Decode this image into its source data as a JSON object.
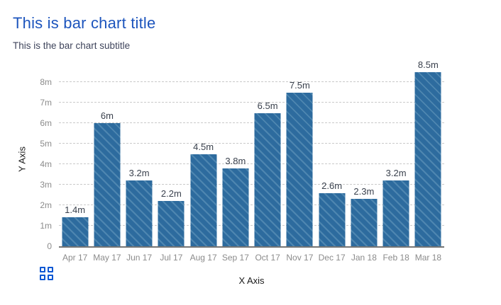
{
  "header": {
    "title": "This is bar chart title",
    "subtitle": "This is the bar chart subtitle"
  },
  "chart_data": {
    "type": "bar",
    "title": "This is bar chart title",
    "subtitle": "This is the bar chart subtitle",
    "xlabel": "X Axis",
    "ylabel": "Y Axis",
    "categories": [
      "Apr 17",
      "May 17",
      "Jun 17",
      "Jul 17",
      "Aug 17",
      "Sep 17",
      "Oct 17",
      "Nov 17",
      "Dec 17",
      "Jan 18",
      "Feb 18",
      "Mar 18"
    ],
    "values": [
      1.4,
      6,
      3.2,
      2.2,
      4.5,
      3.8,
      6.5,
      7.5,
      2.6,
      2.3,
      3.2,
      8.5
    ],
    "value_labels": [
      "1.4m",
      "6m",
      "3.2m",
      "2.2m",
      "4.5m",
      "3.8m",
      "6.5m",
      "7.5m",
      "2.6m",
      "2.3m",
      "3.2m",
      "8.5m"
    ],
    "y_ticks": [
      "0",
      "1m",
      "2m",
      "3m",
      "4m",
      "5m",
      "6m",
      "7m",
      "8m"
    ],
    "ylim": [
      0,
      8.8
    ],
    "grid": "horizontal-dashed",
    "legend_position": "none",
    "bar_pattern": "diagonal-stripes"
  },
  "icons": {
    "context_menu": "grid-icon"
  },
  "colors": {
    "background": "#ffffff",
    "title": "#1d55bd",
    "subtitle": "#3f455c",
    "bar": "#2d6b9e",
    "bar_stripe": "#4e86b0",
    "gridline": "#c9c9c9",
    "axis_line": "#757575",
    "tick_label": "#8b8b8b",
    "value_label": "#3a414d",
    "axis_title": "#1a1a1a",
    "icon": "#0d57d3"
  }
}
